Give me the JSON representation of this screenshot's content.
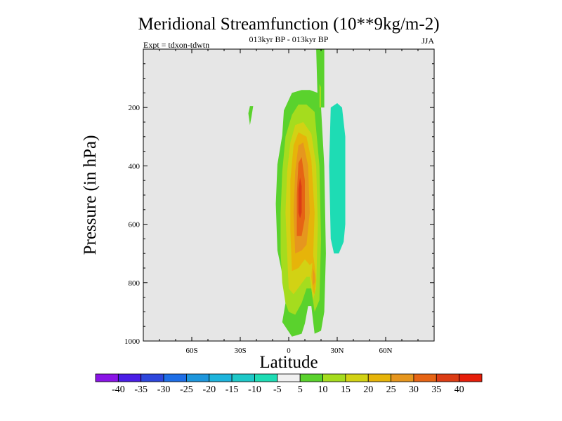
{
  "chart_data": {
    "type": "contour",
    "title": "Meridional Streamfunction (10**9kg/m-2)",
    "subtitle_center": "013kyr BP - 013kyr BP",
    "subtitle_left": "Expt = tdxon-tdwtn",
    "subtitle_right": "JJA",
    "xlabel": "Latitude",
    "ylabel": "Pressure (in hPa)",
    "xlim": [
      -90,
      90
    ],
    "ylim": [
      0,
      1000
    ],
    "x_ticks": [
      {
        "value": -60,
        "label": "60S"
      },
      {
        "value": -30,
        "label": "30S"
      },
      {
        "value": 0,
        "label": "0"
      },
      {
        "value": 30,
        "label": "30N"
      },
      {
        "value": 60,
        "label": "60N"
      }
    ],
    "y_ticks": [
      {
        "value": 200,
        "label": "200"
      },
      {
        "value": 400,
        "label": "400"
      },
      {
        "value": 600,
        "label": "600"
      },
      {
        "value": 800,
        "label": "800"
      },
      {
        "value": 1000,
        "label": "1000"
      }
    ],
    "background_color": "#e6e6e6",
    "colorbar": {
      "levels": [
        "-40",
        "-35",
        "-30",
        "-25",
        "-20",
        "-15",
        "-10",
        "-5",
        "5",
        "10",
        "15",
        "20",
        "25",
        "30",
        "35",
        "40"
      ],
      "colors": [
        "#8a14e6",
        "#4a1ee6",
        "#2d46dc",
        "#1e6ee6",
        "#1e96dc",
        "#1eb4dc",
        "#1ec8c8",
        "#1edcb4",
        "#f0f0f0",
        "#5ad22d",
        "#a5dc1e",
        "#d2d214",
        "#e6b40a",
        "#e6961e",
        "#e66414",
        "#dc3c14",
        "#e61e0a"
      ]
    },
    "features": [
      {
        "name": "positive-cell-10",
        "level": 10,
        "color": "#5ad22d",
        "points": [
          [
            -4,
            935
          ],
          [
            -2,
            870
          ],
          [
            -4,
            770
          ],
          [
            -7,
            690
          ],
          [
            -8,
            530
          ],
          [
            -7,
            395
          ],
          [
            -4,
            295
          ],
          [
            -3,
            210
          ],
          [
            2,
            150
          ],
          [
            8,
            140
          ],
          [
            13,
            140
          ],
          [
            18,
            150
          ],
          [
            20,
            200
          ],
          [
            22,
            400
          ],
          [
            23,
            700
          ],
          [
            22,
            900
          ],
          [
            20,
            965
          ],
          [
            16,
            975
          ],
          [
            14,
            880
          ],
          [
            12,
            880
          ],
          [
            10,
            940
          ],
          [
            8,
            975
          ],
          [
            2,
            985
          ]
        ]
      },
      {
        "name": "positive-cell-15",
        "level": 15,
        "color": "#a5dc1e",
        "points": [
          [
            -2,
            870
          ],
          [
            -4,
            800
          ],
          [
            -5,
            700
          ],
          [
            -5,
            560
          ],
          [
            -4,
            420
          ],
          [
            -2,
            300
          ],
          [
            2,
            225
          ],
          [
            6,
            190
          ],
          [
            11,
            190
          ],
          [
            16,
            215
          ],
          [
            19,
            400
          ],
          [
            20,
            650
          ],
          [
            19,
            860
          ],
          [
            16,
            900
          ],
          [
            14,
            820
          ],
          [
            11,
            820
          ],
          [
            8,
            870
          ],
          [
            4,
            910
          ],
          [
            0,
            900
          ]
        ]
      },
      {
        "name": "positive-cell-20",
        "level": 20,
        "color": "#d2d214",
        "points": [
          [
            0,
            820
          ],
          [
            -1,
            700
          ],
          [
            -2,
            560
          ],
          [
            -1,
            420
          ],
          [
            1,
            320
          ],
          [
            4,
            260
          ],
          [
            9,
            250
          ],
          [
            14,
            290
          ],
          [
            17,
            400
          ],
          [
            18,
            600
          ],
          [
            17,
            820
          ],
          [
            15,
            860
          ],
          [
            13,
            780
          ],
          [
            11,
            780
          ],
          [
            7,
            810
          ],
          [
            3,
            840
          ]
        ]
      },
      {
        "name": "positive-cell-25",
        "level": 25,
        "color": "#e6b40a",
        "points": [
          [
            2,
            760
          ],
          [
            1,
            620
          ],
          [
            1,
            450
          ],
          [
            3,
            330
          ],
          [
            6,
            285
          ],
          [
            11,
            300
          ],
          [
            14,
            380
          ],
          [
            16,
            560
          ],
          [
            15,
            730
          ],
          [
            13,
            740
          ],
          [
            10,
            720
          ],
          [
            6,
            750
          ]
        ]
      },
      {
        "name": "positive-cell-30",
        "level": 30,
        "color": "#e6961e",
        "points": [
          [
            4,
            700
          ],
          [
            3,
            560
          ],
          [
            4,
            420
          ],
          [
            6,
            330
          ],
          [
            9,
            320
          ],
          [
            12,
            400
          ],
          [
            13,
            560
          ],
          [
            11,
            670
          ],
          [
            8,
            690
          ]
        ]
      },
      {
        "name": "positive-cell-35",
        "level": 35,
        "color": "#e66414",
        "points": [
          [
            5,
            640
          ],
          [
            5,
            500
          ],
          [
            6,
            390
          ],
          [
            8,
            370
          ],
          [
            10,
            450
          ],
          [
            10,
            580
          ],
          [
            8,
            640
          ]
        ]
      },
      {
        "name": "positive-cell-40",
        "level": 40,
        "color": "#dc3c14",
        "points": [
          [
            6,
            560
          ],
          [
            6,
            480
          ],
          [
            7,
            440
          ],
          [
            8,
            470
          ],
          [
            8,
            560
          ],
          [
            7,
            580
          ]
        ]
      },
      {
        "name": "secondary-peak-25",
        "level": 25,
        "color": "#e6b40a",
        "points": [
          [
            15,
            700
          ],
          [
            16,
            740
          ],
          [
            17,
            790
          ],
          [
            16,
            840
          ],
          [
            15,
            830
          ],
          [
            14,
            780
          ]
        ]
      },
      {
        "name": "secondary-peak-30",
        "level": 30,
        "color": "#e6961e",
        "points": [
          [
            15,
            750
          ],
          [
            16,
            770
          ],
          [
            16,
            800
          ],
          [
            15,
            810
          ]
        ]
      },
      {
        "name": "spike-10",
        "level": 10,
        "color": "#5ad22d",
        "points": [
          [
            17,
            0
          ],
          [
            22,
            0
          ],
          [
            22,
            200
          ],
          [
            18,
            200
          ]
        ]
      },
      {
        "name": "spike-15",
        "level": 15,
        "color": "#a5dc1e",
        "points": [
          [
            19,
            120
          ],
          [
            20,
            130
          ],
          [
            20,
            200
          ],
          [
            19,
            200
          ]
        ]
      },
      {
        "name": "small-blob-10",
        "level": 10,
        "color": "#5ad22d",
        "points": [
          [
            -24,
            195
          ],
          [
            -22,
            195
          ],
          [
            -23,
            230
          ],
          [
            -24,
            260
          ],
          [
            -25,
            220
          ]
        ]
      },
      {
        "name": "negative-cell-10",
        "level": -10,
        "color": "#1edcb4",
        "points": [
          [
            26,
            200
          ],
          [
            30,
            185
          ],
          [
            33,
            200
          ],
          [
            35,
            300
          ],
          [
            35,
            600
          ],
          [
            34,
            660
          ],
          [
            31,
            700
          ],
          [
            28,
            700
          ],
          [
            26,
            650
          ],
          [
            25,
            400
          ]
        ]
      }
    ]
  }
}
